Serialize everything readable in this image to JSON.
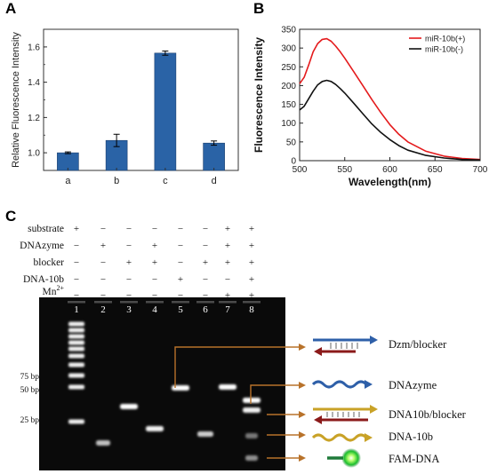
{
  "panels": {
    "a": "A",
    "b": "B",
    "c": "C"
  },
  "chart_data": [
    {
      "type": "bar",
      "categories": [
        "a",
        "b",
        "c",
        "d"
      ],
      "values": [
        1.0,
        1.07,
        1.565,
        1.055
      ],
      "errors": [
        0.005,
        0.035,
        0.012,
        0.012
      ],
      "xlabel": "",
      "ylabel": "Relative Fluorescence Intensity",
      "ylim": [
        0.9,
        1.7
      ],
      "yticks": [
        1.0,
        1.2,
        1.4,
        1.6
      ],
      "yticklabels": [
        "1.0",
        "1.2",
        "1.4",
        "1.6"
      ],
      "bar_color": "#2a63a6"
    },
    {
      "type": "line",
      "xlabel": "Wavelength(nm)",
      "ylabel": "Fluorescence Intensity",
      "xlim": [
        500,
        700
      ],
      "ylim": [
        0,
        350
      ],
      "xticks": [
        500,
        550,
        600,
        650,
        700
      ],
      "xticklabels": [
        "500",
        "550",
        "600",
        "650",
        "700"
      ],
      "yticks": [
        0,
        50,
        100,
        150,
        200,
        250,
        300,
        350
      ],
      "yticklabels": [
        "0",
        "50",
        "100",
        "150",
        "200",
        "250",
        "300",
        "350"
      ],
      "legend_position": "top-right",
      "series": [
        {
          "name": "miR-10b(+)",
          "color": "#e41a1c",
          "x": [
            500,
            505,
            510,
            515,
            520,
            525,
            530,
            535,
            540,
            545,
            550,
            560,
            570,
            580,
            590,
            600,
            610,
            620,
            640,
            660,
            680,
            700
          ],
          "y": [
            205,
            222,
            255,
            290,
            312,
            323,
            325,
            318,
            305,
            290,
            273,
            237,
            200,
            163,
            128,
            96,
            70,
            50,
            25,
            12,
            6,
            3
          ]
        },
        {
          "name": "miR-10b(-)",
          "color": "#111111",
          "x": [
            500,
            505,
            510,
            515,
            520,
            525,
            530,
            535,
            540,
            545,
            550,
            560,
            570,
            580,
            590,
            600,
            610,
            620,
            640,
            660,
            680,
            700
          ],
          "y": [
            135,
            145,
            165,
            185,
            202,
            211,
            214,
            211,
            203,
            192,
            180,
            153,
            125,
            98,
            75,
            56,
            40,
            28,
            14,
            7,
            3,
            2
          ]
        }
      ]
    }
  ],
  "gel": {
    "row_labels": [
      "substrate",
      "DNAzyme",
      "blocker",
      "DNA-10b",
      "Mn2+"
    ],
    "mn_base": "Mn",
    "mn_sup": "2+",
    "table": [
      [
        "+",
        "−",
        "−",
        "−",
        "−",
        "−",
        "+",
        "+"
      ],
      [
        "−",
        "+",
        "−",
        "+",
        "−",
        "−",
        "+",
        "+"
      ],
      [
        "−",
        "−",
        "+",
        "+",
        "−",
        "+",
        "+",
        "+"
      ],
      [
        "−",
        "−",
        "−",
        "−",
        "+",
        "−",
        "−",
        "+"
      ],
      [
        "−",
        "−",
        "−",
        "−",
        "−",
        "−",
        "+",
        "+"
      ]
    ],
    "lane_numbers": [
      "1",
      "2",
      "3",
      "4",
      "5",
      "6",
      "7",
      "8"
    ],
    "ladder_labels": [
      "75 bp",
      "50 bp",
      "25 bp"
    ],
    "legend": [
      "Dzm/blocker",
      "DNAzyme",
      "DNA10b/blocker",
      "DNA-10b",
      "FAM-DNA"
    ]
  }
}
